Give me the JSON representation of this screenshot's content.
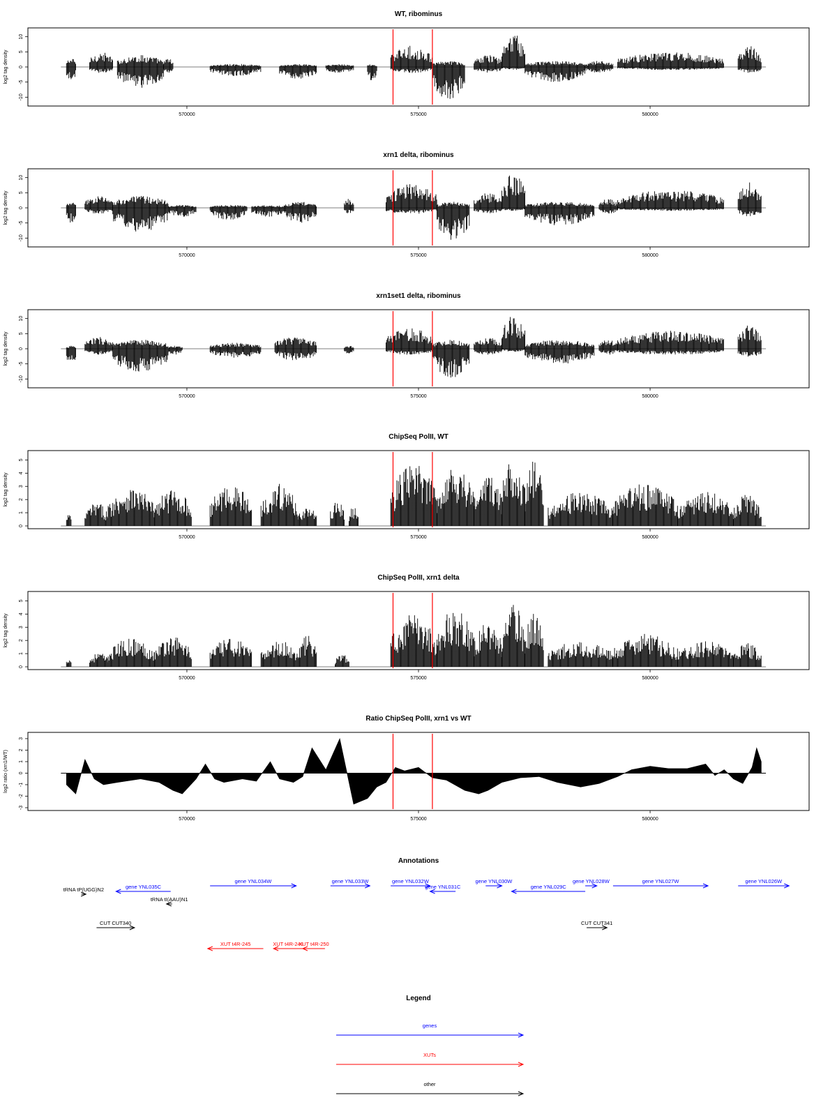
{
  "colors": {
    "signal": "#000000",
    "marker": "#ff0000",
    "gene": "#0000ff",
    "xut": "#ff0000",
    "other": "#000000",
    "baseline": "#555555"
  },
  "chart_data": [
    {
      "type": "area",
      "title": "WT, ribominus",
      "ylabel": "log2 tag density",
      "xlim": [
        567200,
        582800
      ],
      "ylim": [
        -12,
        12
      ],
      "yticks": [
        -10,
        -5,
        0,
        5,
        10
      ],
      "xticks": [
        570000,
        575000,
        580000
      ],
      "xtick_labels": [
        "570000",
        "575000",
        "580000"
      ],
      "markers": [
        574450,
        575300
      ],
      "regions": [
        {
          "x": [
            567400,
            567600
          ],
          "pos": 3,
          "neg": -5
        },
        {
          "x": [
            567900,
            568400
          ],
          "pos": 5,
          "neg": -2
        },
        {
          "x": [
            568500,
            569500
          ],
          "pos": 4,
          "neg": -7
        },
        {
          "x": [
            569500,
            569700
          ],
          "pos": 3,
          "neg": -2
        },
        {
          "x": [
            570500,
            571600
          ],
          "pos": 1,
          "neg": -3
        },
        {
          "x": [
            572000,
            572800
          ],
          "pos": 1,
          "neg": -4
        },
        {
          "x": [
            573000,
            573600
          ],
          "pos": 1,
          "neg": -2
        },
        {
          "x": [
            573900,
            574100
          ],
          "pos": 1,
          "neg": -5
        },
        {
          "x": [
            574400,
            575300
          ],
          "pos": 7,
          "neg": -2
        },
        {
          "x": [
            575300,
            576000
          ],
          "pos": 2,
          "neg": -11
        },
        {
          "x": [
            576200,
            576800
          ],
          "pos": 4,
          "neg": -2
        },
        {
          "x": [
            576800,
            577300
          ],
          "pos": 11,
          "neg": -1
        },
        {
          "x": [
            577300,
            578600
          ],
          "pos": 2,
          "neg": -5
        },
        {
          "x": [
            578600,
            579200
          ],
          "pos": 2,
          "neg": -2
        },
        {
          "x": [
            579300,
            581600
          ],
          "pos": 5,
          "neg": -1
        },
        {
          "x": [
            581900,
            582400
          ],
          "pos": 7,
          "neg": -2
        }
      ]
    },
    {
      "type": "area",
      "title": "xrn1 delta, ribominus",
      "ylabel": "log2 tag density",
      "xlim": [
        567200,
        582800
      ],
      "ylim": [
        -12,
        12
      ],
      "yticks": [
        -10,
        -5,
        0,
        5,
        10
      ],
      "xticks": [
        570000,
        575000,
        580000
      ],
      "xtick_labels": [
        "570000",
        "575000",
        "580000"
      ],
      "markers": [
        574450,
        575300
      ],
      "regions": [
        {
          "x": [
            567400,
            567600
          ],
          "pos": 2,
          "neg": -5
        },
        {
          "x": [
            567800,
            568400
          ],
          "pos": 4,
          "neg": -2
        },
        {
          "x": [
            568400,
            569600
          ],
          "pos": 4,
          "neg": -8
        },
        {
          "x": [
            569600,
            570200
          ],
          "pos": 1,
          "neg": -3
        },
        {
          "x": [
            570500,
            571300
          ],
          "pos": 1,
          "neg": -4
        },
        {
          "x": [
            571400,
            572100
          ],
          "pos": 1,
          "neg": -3
        },
        {
          "x": [
            572100,
            572800
          ],
          "pos": 2,
          "neg": -5
        },
        {
          "x": [
            573400,
            573600
          ],
          "pos": 3,
          "neg": -2
        },
        {
          "x": [
            574300,
            575400
          ],
          "pos": 8,
          "neg": -2
        },
        {
          "x": [
            575400,
            576100
          ],
          "pos": 2,
          "neg": -11
        },
        {
          "x": [
            576200,
            576800
          ],
          "pos": 5,
          "neg": -2
        },
        {
          "x": [
            576800,
            577300
          ],
          "pos": 12,
          "neg": -1
        },
        {
          "x": [
            577300,
            578800
          ],
          "pos": 2,
          "neg": -6
        },
        {
          "x": [
            578900,
            579300
          ],
          "pos": 3,
          "neg": -2
        },
        {
          "x": [
            579300,
            581600
          ],
          "pos": 6,
          "neg": -1
        },
        {
          "x": [
            581900,
            582400
          ],
          "pos": 9,
          "neg": -3
        }
      ]
    },
    {
      "type": "area",
      "title": "xrn1set1 delta, ribominus",
      "ylabel": "log2 tag density",
      "xlim": [
        567200,
        582800
      ],
      "ylim": [
        -12,
        12
      ],
      "yticks": [
        -10,
        -5,
        0,
        5,
        10
      ],
      "xticks": [
        570000,
        575000,
        580000
      ],
      "xtick_labels": [
        "570000",
        "575000",
        "580000"
      ],
      "markers": [
        574450,
        575300
      ],
      "regions": [
        {
          "x": [
            567400,
            567600
          ],
          "pos": 1,
          "neg": -6
        },
        {
          "x": [
            567800,
            568400
          ],
          "pos": 4,
          "neg": -2
        },
        {
          "x": [
            568400,
            569600
          ],
          "pos": 3,
          "neg": -8
        },
        {
          "x": [
            569600,
            569900
          ],
          "pos": 1,
          "neg": -2
        },
        {
          "x": [
            570500,
            571600
          ],
          "pos": 2,
          "neg": -3
        },
        {
          "x": [
            571900,
            572800
          ],
          "pos": 4,
          "neg": -4
        },
        {
          "x": [
            573400,
            573600
          ],
          "pos": 1,
          "neg": -2
        },
        {
          "x": [
            574300,
            575300
          ],
          "pos": 7,
          "neg": -2
        },
        {
          "x": [
            575300,
            576100
          ],
          "pos": 3,
          "neg": -10
        },
        {
          "x": [
            576200,
            576800
          ],
          "pos": 4,
          "neg": -2
        },
        {
          "x": [
            576800,
            577300
          ],
          "pos": 11,
          "neg": -1
        },
        {
          "x": [
            577300,
            578800
          ],
          "pos": 3,
          "neg": -5
        },
        {
          "x": [
            578900,
            579300
          ],
          "pos": 3,
          "neg": -2
        },
        {
          "x": [
            579300,
            581600
          ],
          "pos": 6,
          "neg": -2
        },
        {
          "x": [
            581900,
            582400
          ],
          "pos": 8,
          "neg": -3
        }
      ]
    },
    {
      "type": "area",
      "title": "ChipSeq PolII, WT",
      "ylabel": "log2 tag density",
      "xlim": [
        567200,
        582800
      ],
      "ylim": [
        0,
        5.5
      ],
      "yticks": [
        0,
        1,
        2,
        3,
        4,
        5
      ],
      "xticks": [
        570000,
        575000,
        580000
      ],
      "xtick_labels": [
        "570000",
        "575000",
        "580000"
      ],
      "markers": [
        574450,
        575300
      ],
      "regions": [
        {
          "x": [
            567400,
            567500
          ],
          "pos": 1,
          "neg": 0
        },
        {
          "x": [
            567800,
            568300
          ],
          "pos": 1.8,
          "neg": 0
        },
        {
          "x": [
            568300,
            569300
          ],
          "pos": 3,
          "neg": 0
        },
        {
          "x": [
            569300,
            570100
          ],
          "pos": 2.8,
          "neg": 0
        },
        {
          "x": [
            570500,
            571400
          ],
          "pos": 3.2,
          "neg": 0
        },
        {
          "x": [
            571600,
            572400
          ],
          "pos": 3.2,
          "neg": 0
        },
        {
          "x": [
            572400,
            572800
          ],
          "pos": 1.5,
          "neg": 0
        },
        {
          "x": [
            573100,
            573400
          ],
          "pos": 2,
          "neg": 0
        },
        {
          "x": [
            573500,
            573700
          ],
          "pos": 1.5,
          "neg": 0
        },
        {
          "x": [
            574400,
            575400
          ],
          "pos": 4.8,
          "neg": 0
        },
        {
          "x": [
            575400,
            576200
          ],
          "pos": 4.8,
          "neg": 0
        },
        {
          "x": [
            576200,
            576800
          ],
          "pos": 4,
          "neg": 0
        },
        {
          "x": [
            576800,
            577300
          ],
          "pos": 5.5,
          "neg": 0
        },
        {
          "x": [
            577300,
            577700
          ],
          "pos": 5,
          "neg": 0
        },
        {
          "x": [
            577800,
            579200
          ],
          "pos": 2.6,
          "neg": 0
        },
        {
          "x": [
            579200,
            580600
          ],
          "pos": 3.3,
          "neg": 0
        },
        {
          "x": [
            580600,
            581800
          ],
          "pos": 2.6,
          "neg": 0
        },
        {
          "x": [
            581800,
            582400
          ],
          "pos": 2.5,
          "neg": 0
        }
      ]
    },
    {
      "type": "area",
      "title": "ChipSeq PolII, xrn1 delta",
      "ylabel": "log2 tag density",
      "xlim": [
        567200,
        582800
      ],
      "ylim": [
        0,
        5.5
      ],
      "yticks": [
        0,
        1,
        2,
        3,
        4,
        5
      ],
      "xticks": [
        570000,
        575000,
        580000
      ],
      "xtick_labels": [
        "570000",
        "575000",
        "580000"
      ],
      "markers": [
        574450,
        575300
      ],
      "regions": [
        {
          "x": [
            567400,
            567500
          ],
          "pos": 0.8,
          "neg": 0
        },
        {
          "x": [
            567900,
            568300
          ],
          "pos": 1.1,
          "neg": 0
        },
        {
          "x": [
            568300,
            569300
          ],
          "pos": 2.2,
          "neg": 0
        },
        {
          "x": [
            569300,
            570100
          ],
          "pos": 2.4,
          "neg": 0
        },
        {
          "x": [
            570500,
            571400
          ],
          "pos": 2.2,
          "neg": 0
        },
        {
          "x": [
            571600,
            572400
          ],
          "pos": 2,
          "neg": 0
        },
        {
          "x": [
            572400,
            572800
          ],
          "pos": 2.4,
          "neg": 0
        },
        {
          "x": [
            573200,
            573500
          ],
          "pos": 1,
          "neg": 0
        },
        {
          "x": [
            574400,
            575400
          ],
          "pos": 4,
          "neg": 0
        },
        {
          "x": [
            575400,
            576200
          ],
          "pos": 4.5,
          "neg": 0
        },
        {
          "x": [
            576200,
            576800
          ],
          "pos": 3.5,
          "neg": 0
        },
        {
          "x": [
            576800,
            577300
          ],
          "pos": 4.8,
          "neg": 0
        },
        {
          "x": [
            577300,
            577700
          ],
          "pos": 4.3,
          "neg": 0
        },
        {
          "x": [
            577800,
            579200
          ],
          "pos": 2,
          "neg": 0
        },
        {
          "x": [
            579200,
            580600
          ],
          "pos": 2.5,
          "neg": 0
        },
        {
          "x": [
            580600,
            581800
          ],
          "pos": 2,
          "neg": 0
        },
        {
          "x": [
            581800,
            582400
          ],
          "pos": 1.8,
          "neg": 0
        }
      ]
    },
    {
      "type": "line",
      "title": "Ratio ChipSeq PolII, xrn1 vs WT",
      "ylabel": "log2 ratio (xrn1/WT)",
      "xlim": [
        567200,
        582800
      ],
      "ylim": [
        -3,
        3.3
      ],
      "yticks": [
        -3,
        -2,
        -1,
        0,
        1,
        2,
        3
      ],
      "xticks": [
        570000,
        575000,
        580000
      ],
      "xtick_labels": [
        "570000",
        "575000",
        "580000"
      ],
      "markers": [
        574450,
        575300
      ],
      "x": [
        567400,
        567600,
        567800,
        568000,
        568200,
        568500,
        569000,
        569400,
        569700,
        569900,
        570200,
        570400,
        570600,
        570800,
        571200,
        571500,
        571800,
        572000,
        572300,
        572500,
        572700,
        573000,
        573300,
        573600,
        573900,
        574100,
        574300,
        574500,
        574700,
        575000,
        575300,
        575600,
        576000,
        576300,
        576500,
        576800,
        577200,
        577600,
        578000,
        578500,
        578900,
        579300,
        579600,
        580000,
        580400,
        580800,
        581200,
        581400,
        581600,
        581800,
        582000,
        582200,
        582300,
        582400
      ],
      "y": [
        -1,
        -1.8,
        1.2,
        -0.5,
        -1,
        -0.8,
        -0.5,
        -0.8,
        -1.5,
        -1.8,
        -0.5,
        0.8,
        -0.5,
        -0.8,
        -0.5,
        -0.7,
        1,
        -0.5,
        -0.8,
        -0.3,
        2.2,
        0.3,
        3,
        -2.7,
        -2.2,
        -1.2,
        -0.8,
        0.5,
        0.2,
        0.5,
        -0.4,
        -0.6,
        -1.5,
        -1.8,
        -1.5,
        -0.8,
        -0.4,
        -0.3,
        -0.8,
        -1.2,
        -0.9,
        -0.3,
        0.3,
        0.6,
        0.4,
        0.4,
        0.8,
        -0.2,
        0.3,
        -0.5,
        -0.9,
        0.5,
        2.2,
        1
      ]
    }
  ],
  "annotations": {
    "title": "Annotations",
    "items": [
      {
        "label": "gene YNL035C",
        "x1": 568470,
        "x2": 569650,
        "dir": "left",
        "row": 1,
        "kind": "gene"
      },
      {
        "label": "gene YNL034W",
        "x1": 570500,
        "x2": 572360,
        "dir": "right",
        "row": 0,
        "kind": "gene"
      },
      {
        "label": "gene YNL033W",
        "x1": 573100,
        "x2": 573950,
        "dir": "right",
        "row": 0,
        "kind": "gene"
      },
      {
        "label": "gene YNL032W",
        "x1": 574400,
        "x2": 575250,
        "dir": "right",
        "row": 0,
        "kind": "gene"
      },
      {
        "label": "gene YNL031C",
        "x1": 575250,
        "x2": 575800,
        "dir": "left",
        "row": 1,
        "kind": "gene"
      },
      {
        "label": "gene YNL030W",
        "x1": 576450,
        "x2": 576800,
        "dir": "right",
        "row": 0,
        "kind": "gene"
      },
      {
        "label": "gene YNL029C",
        "x1": 577010,
        "x2": 578600,
        "dir": "left",
        "row": 1,
        "kind": "gene"
      },
      {
        "label": "gene YNL028W",
        "x1": 578600,
        "x2": 578850,
        "dir": "right",
        "row": 0,
        "kind": "gene"
      },
      {
        "label": "gene YNL027W",
        "x1": 579200,
        "x2": 581250,
        "dir": "right",
        "row": 0,
        "kind": "gene"
      },
      {
        "label": "gene YNL026W",
        "x1": 581900,
        "x2": 583000,
        "dir": "right",
        "row": 0,
        "kind": "gene"
      },
      {
        "label": "tRNA tP(UGG)N2",
        "x1": 567720,
        "x2": 567820,
        "dir": "right",
        "row": 2,
        "kind": "other"
      },
      {
        "label": "tRNA tI(AAU)N1",
        "x1": 569560,
        "x2": 569680,
        "dir": "left",
        "row": 3,
        "kind": "other"
      },
      {
        "label": "CUT CUT340",
        "x1": 568050,
        "x2": 568870,
        "dir": "right",
        "row": 4,
        "kind": "other"
      },
      {
        "label": "CUT CUT341",
        "x1": 578630,
        "x2": 579070,
        "dir": "right",
        "row": 4,
        "kind": "other"
      },
      {
        "label": "XUT t4R-245",
        "x1": 570450,
        "x2": 571650,
        "dir": "left",
        "row": 5,
        "kind": "xut"
      },
      {
        "label": "XUT t4R-249",
        "x1": 571870,
        "x2": 572500,
        "dir": "left",
        "row": 5,
        "kind": "xut"
      },
      {
        "label": "XUT t4R-250",
        "x1": 572500,
        "x2": 572980,
        "dir": "left",
        "row": 5,
        "kind": "xut"
      }
    ]
  },
  "legend": {
    "title": "Legend",
    "items": [
      {
        "label": "genes",
        "kind": "gene"
      },
      {
        "label": "XUTs",
        "kind": "xut"
      },
      {
        "label": "other",
        "kind": "other"
      }
    ]
  }
}
